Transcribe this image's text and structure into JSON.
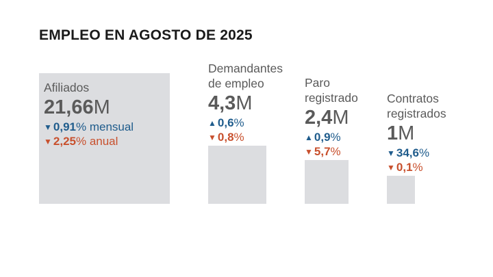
{
  "title": "EMPLEO EN AGOSTO DE 2025",
  "colors": {
    "block": "#dcdde0",
    "up_down_monthly": "#1f5c8c",
    "annual": "#c8502d",
    "text": "#5a5a5a"
  },
  "chart_data": {
    "type": "bar",
    "title": "EMPLEO EN AGOSTO DE 2025",
    "categories": [
      "Afiliados",
      "Demandantes de empleo",
      "Paro registrado",
      "Contratos registrados"
    ],
    "values": [
      21.66,
      4.3,
      2.4,
      1
    ],
    "unit": "M",
    "items": [
      {
        "label_lines": [
          "Afiliados"
        ],
        "value": 21.66,
        "value_text": "21,66",
        "unit": "M",
        "monthly": {
          "direction": "down",
          "arrow": "▼",
          "value_text": "0,91",
          "suffix": "% mensual"
        },
        "annual": {
          "direction": "down",
          "arrow": "▼",
          "value_text": "2,25",
          "suffix": "% anual"
        }
      },
      {
        "label_lines": [
          "Demandantes",
          "de empleo"
        ],
        "value": 4.3,
        "value_text": "4,3",
        "unit": "M",
        "monthly": {
          "direction": "up",
          "arrow": "▲",
          "value_text": "0,6",
          "suffix": "%"
        },
        "annual": {
          "direction": "down",
          "arrow": "▼",
          "value_text": "0,8",
          "suffix": "%"
        }
      },
      {
        "label_lines": [
          "Paro",
          "registrado"
        ],
        "value": 2.4,
        "value_text": "2,4",
        "unit": "M",
        "monthly": {
          "direction": "up",
          "arrow": "▲",
          "value_text": "0,9",
          "suffix": "%"
        },
        "annual": {
          "direction": "down",
          "arrow": "▼",
          "value_text": "5,7",
          "suffix": "%"
        }
      },
      {
        "label_lines": [
          "Contratos",
          "registrados"
        ],
        "value": 1,
        "value_text": "1",
        "unit": "M",
        "monthly": {
          "direction": "down",
          "arrow": "▼",
          "value_text": "34,6",
          "suffix": "%"
        },
        "annual": {
          "direction": "down",
          "arrow": "▼",
          "value_text": "0,1",
          "suffix": "%"
        }
      }
    ]
  }
}
